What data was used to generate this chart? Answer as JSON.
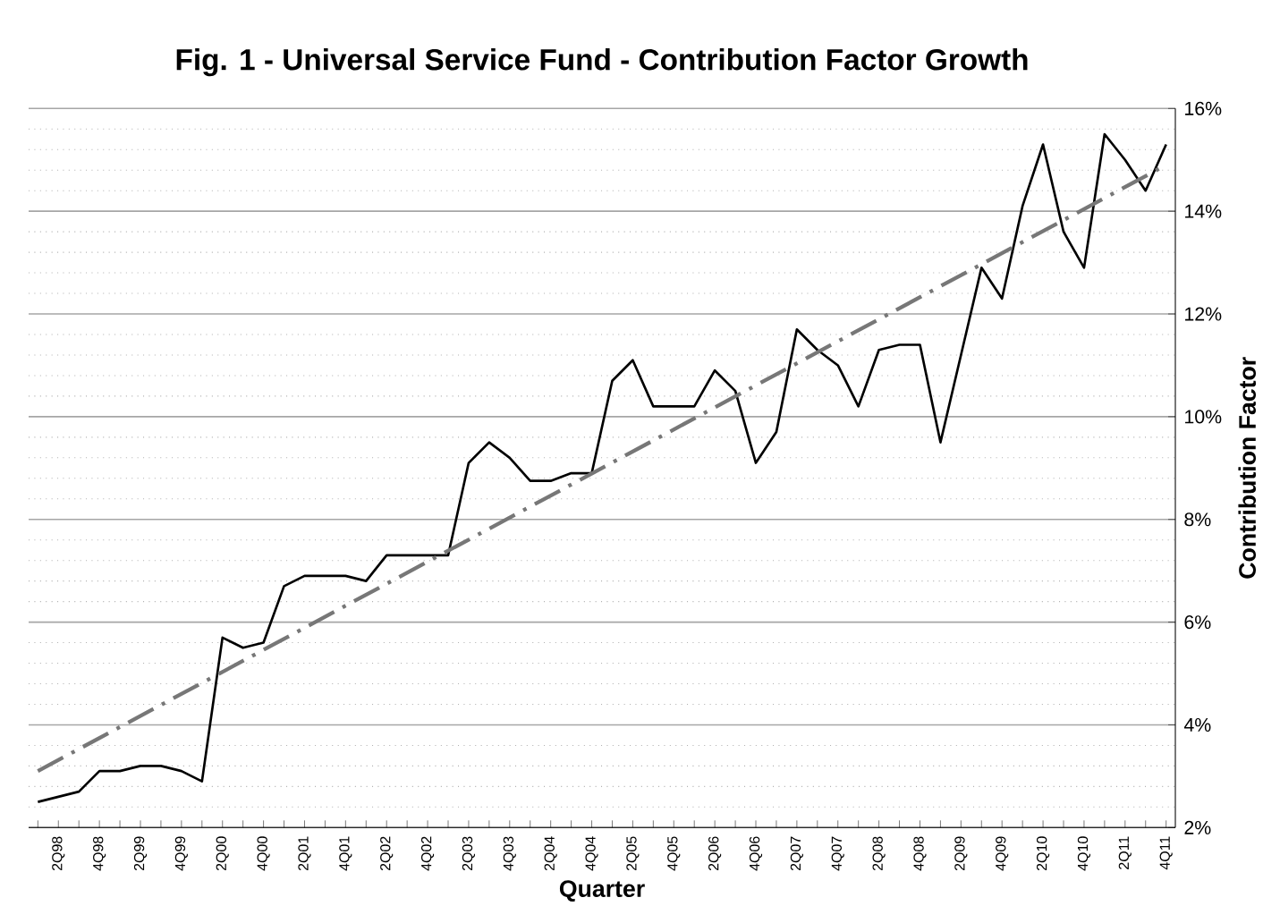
{
  "chart_data": {
    "type": "line",
    "title": "Fig. 1 - Universal Service Fund - Contribution Factor Growth",
    "xlabel": "Quarter",
    "ylabel": "Contribution Factor",
    "categories": [
      null,
      "2Q98",
      null,
      "4Q98",
      null,
      "2Q99",
      null,
      "4Q99",
      null,
      "2Q00",
      null,
      "4Q00",
      null,
      "2Q01",
      null,
      "4Q01",
      null,
      "2Q02",
      null,
      "4Q02",
      null,
      "2Q03",
      null,
      "4Q03",
      null,
      "2Q04",
      null,
      "4Q04",
      null,
      "2Q05",
      null,
      "4Q05",
      null,
      "2Q06",
      null,
      "4Q06",
      null,
      "2Q07",
      null,
      "4Q07",
      null,
      "2Q08",
      null,
      "4Q08",
      null,
      "2Q09",
      null,
      "4Q09",
      null,
      "2Q10",
      null,
      "4Q10",
      null,
      "2Q11",
      null,
      "4Q11"
    ],
    "series": [
      {
        "color": "#000000",
        "line_style": "solid",
        "values": [
          2.5,
          2.6,
          2.7,
          3.1,
          3.1,
          3.2,
          3.2,
          3.1,
          2.9,
          5.7,
          5.5,
          5.6,
          6.7,
          6.9,
          6.9,
          6.9,
          6.8,
          7.3,
          7.3,
          7.3,
          7.3,
          9.1,
          9.5,
          9.2,
          8.75,
          8.75,
          8.9,
          8.9,
          10.7,
          11.1,
          10.2,
          10.2,
          10.2,
          10.9,
          10.5,
          9.1,
          9.7,
          11.7,
          11.3,
          11.0,
          10.2,
          11.3,
          11.4,
          11.4,
          9.5,
          11.2,
          12.9,
          12.3,
          14.1,
          15.3,
          13.6,
          12.9,
          15.5,
          15.0,
          14.4,
          15.3
        ]
      },
      {
        "color": "#777777",
        "line_style": "dashed",
        "values": [
          3.1,
          null,
          null,
          null,
          null,
          null,
          null,
          null,
          null,
          null,
          null,
          null,
          null,
          null,
          null,
          null,
          null,
          null,
          null,
          null,
          null,
          null,
          null,
          null,
          null,
          null,
          null,
          null,
          null,
          null,
          null,
          null,
          null,
          null,
          null,
          null,
          null,
          null,
          null,
          null,
          null,
          null,
          null,
          null,
          null,
          null,
          null,
          null,
          null,
          null,
          null,
          null,
          null,
          null,
          null,
          14.9
        ]
      }
    ],
    "ylim": [
      2,
      16
    ],
    "yticks": [
      {
        "value": 2,
        "label": "2%"
      },
      {
        "value": 4,
        "label": "4%"
      },
      {
        "value": 6,
        "label": "6%"
      },
      {
        "value": 8,
        "label": "8%"
      },
      {
        "value": 10,
        "label": "10%"
      },
      {
        "value": 12,
        "label": "12%"
      },
      {
        "value": 14,
        "label": "14%"
      },
      {
        "value": 16,
        "label": "16%"
      }
    ],
    "grid": "y"
  }
}
